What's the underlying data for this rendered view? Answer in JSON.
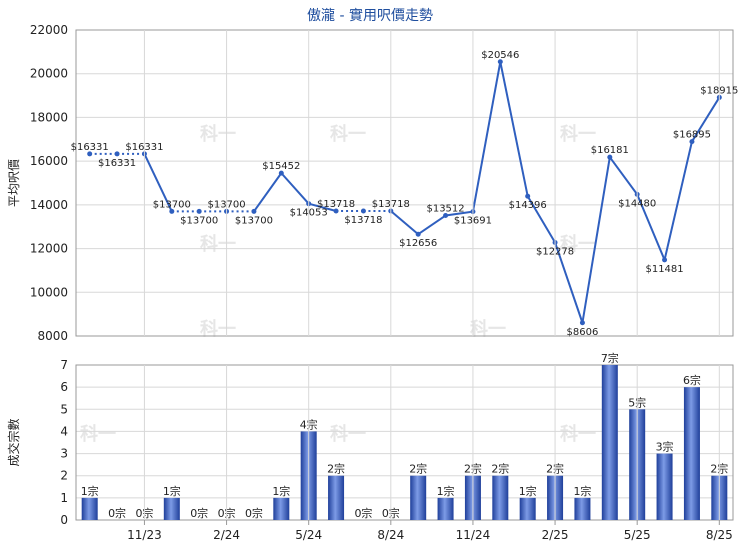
{
  "title": "傲瀧 - 實用呎價走勢",
  "colors": {
    "line": "#2f5fbf",
    "bar_dark": "#1f3f9a",
    "bar_light": "#7d9be6"
  },
  "watermark": "科一",
  "x_ticks": [
    "11/23",
    "2/24",
    "5/24",
    "8/24",
    "11/24",
    "2/25",
    "5/25",
    "8/25"
  ],
  "chart_data": [
    {
      "type": "line",
      "ylabel": "平均呎價",
      "ylim": [
        8000,
        22000
      ],
      "yticks": [
        8000,
        10000,
        12000,
        14000,
        16000,
        18000,
        20000,
        22000
      ],
      "points": [
        {
          "label": "$16331",
          "value": 16331
        },
        {
          "label": "$16331",
          "value": 16331
        },
        {
          "label": "$16331",
          "value": 16331
        },
        {
          "label": "$13700",
          "value": 13700
        },
        {
          "label": "$13700",
          "value": 13700
        },
        {
          "label": "$13700",
          "value": 13700
        },
        {
          "label": "$13700",
          "value": 13700
        },
        {
          "label": "$15452",
          "value": 15452
        },
        {
          "label": "$14053",
          "value": 14053
        },
        {
          "label": "$13718",
          "value": 13718
        },
        {
          "label": "$13718",
          "value": 13718
        },
        {
          "label": "$13718",
          "value": 13718
        },
        {
          "label": "$12656",
          "value": 12656
        },
        {
          "label": "$13512",
          "value": 13512
        },
        {
          "label": "$13691",
          "value": 13691
        },
        {
          "label": "$20546",
          "value": 20546
        },
        {
          "label": "$14396",
          "value": 14396
        },
        {
          "label": "$12278",
          "value": 12278
        },
        {
          "label": "$8606",
          "value": 8606
        },
        {
          "label": "$16181",
          "value": 16181
        },
        {
          "label": "$14480",
          "value": 14480
        },
        {
          "label": "$11481",
          "value": 11481
        },
        {
          "label": "$16895",
          "value": 16895
        },
        {
          "label": "$18915",
          "value": 18915
        }
      ]
    },
    {
      "type": "bar",
      "ylabel": "成交宗數",
      "ylim": [
        0,
        7
      ],
      "yticks": [
        0,
        1,
        2,
        3,
        4,
        5,
        6,
        7
      ],
      "bars": [
        {
          "label": "1宗",
          "value": 1
        },
        {
          "label": "0宗",
          "value": 0
        },
        {
          "label": "0宗",
          "value": 0
        },
        {
          "label": "1宗",
          "value": 1
        },
        {
          "label": "0宗",
          "value": 0
        },
        {
          "label": "0宗",
          "value": 0
        },
        {
          "label": "0宗",
          "value": 0
        },
        {
          "label": "1宗",
          "value": 1
        },
        {
          "label": "4宗",
          "value": 4
        },
        {
          "label": "2宗",
          "value": 2
        },
        {
          "label": "0宗",
          "value": 0
        },
        {
          "label": "0宗",
          "value": 0
        },
        {
          "label": "2宗",
          "value": 2
        },
        {
          "label": "1宗",
          "value": 1
        },
        {
          "label": "2宗",
          "value": 2
        },
        {
          "label": "2宗",
          "value": 2
        },
        {
          "label": "1宗",
          "value": 1
        },
        {
          "label": "2宗",
          "value": 2
        },
        {
          "label": "1宗",
          "value": 1
        },
        {
          "label": "7宗",
          "value": 7
        },
        {
          "label": "5宗",
          "value": 5
        },
        {
          "label": "3宗",
          "value": 3
        },
        {
          "label": "6宗",
          "value": 6
        },
        {
          "label": "2宗",
          "value": 2
        }
      ]
    }
  ]
}
